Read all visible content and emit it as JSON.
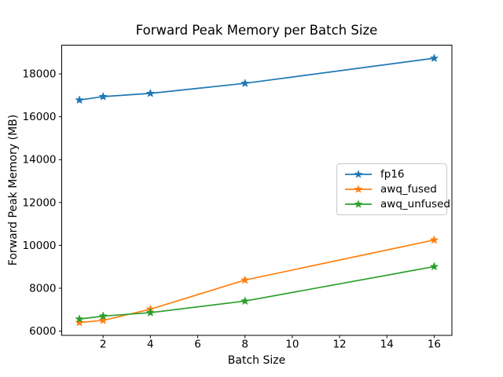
{
  "figure": {
    "background": "#ffffff"
  },
  "chart_data": {
    "type": "line",
    "title": "Forward Peak Memory per Batch Size",
    "xlabel": "Batch Size",
    "ylabel": "Forward Peak Memory (MB)",
    "x": [
      1,
      2,
      4,
      8,
      16
    ],
    "series": [
      {
        "name": "fp16",
        "color": "#1f77b4",
        "values": [
          16780,
          16940,
          17090,
          17560,
          18730
        ]
      },
      {
        "name": "awq_fused",
        "color": "#ff7f0e",
        "values": [
          6400,
          6500,
          7020,
          8380,
          10250
        ]
      },
      {
        "name": "awq_unfused",
        "color": "#2ca02c",
        "values": [
          6560,
          6700,
          6860,
          7400,
          9010
        ]
      }
    ],
    "xticks": [
      2,
      4,
      6,
      8,
      10,
      12,
      14,
      16
    ],
    "yticks": [
      6000,
      8000,
      10000,
      12000,
      14000,
      16000,
      18000
    ],
    "xlim": [
      0.25,
      16.75
    ],
    "ylim": [
      5800,
      19340
    ],
    "marker": "star",
    "grid": false,
    "legend": {
      "position": "center right",
      "entries": [
        "fp16",
        "awq_fused",
        "awq_unfused"
      ]
    },
    "axis_color": "#000000",
    "text_color": "#000000"
  }
}
